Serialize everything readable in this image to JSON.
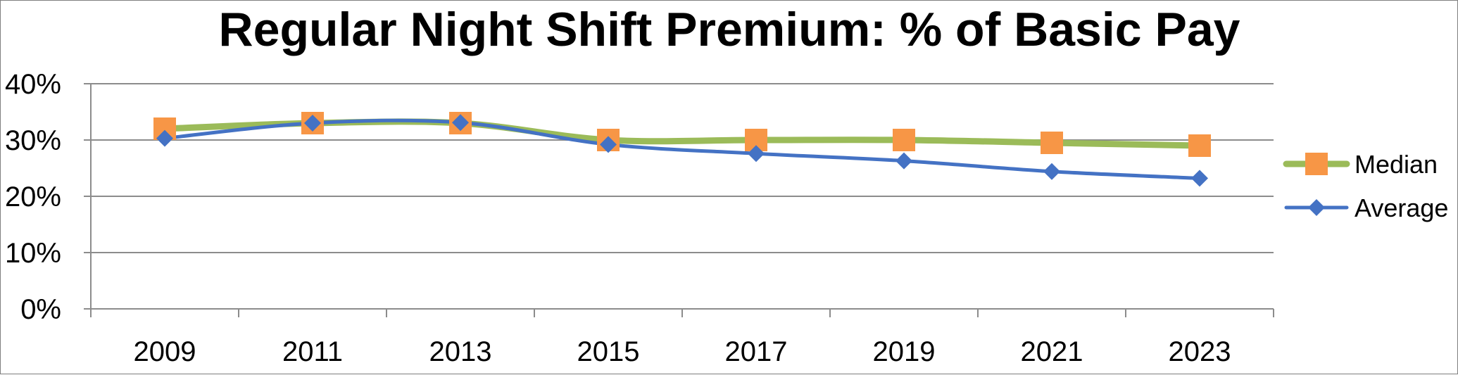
{
  "chart_data": {
    "type": "line",
    "title": "Regular Night Shift Premium: % of Basic Pay",
    "xlabel": "",
    "ylabel": "",
    "categories": [
      "2009",
      "2011",
      "2013",
      "2015",
      "2017",
      "2019",
      "2021",
      "2023"
    ],
    "ylim": [
      0,
      40
    ],
    "yticks": [
      0,
      10,
      20,
      30,
      40
    ],
    "ytick_labels": [
      "0%",
      "10%",
      "20%",
      "30%",
      "40%"
    ],
    "grid": true,
    "legend_position": "right",
    "series": [
      {
        "name": "Median",
        "values": [
          32.0,
          33.0,
          33.0,
          30.0,
          30.0,
          30.0,
          29.5,
          29.0
        ],
        "line_color": "#9bbb59",
        "marker": "square",
        "marker_color": "#f79646"
      },
      {
        "name": "Average",
        "values": [
          30.3,
          33.0,
          33.1,
          29.2,
          27.6,
          26.3,
          24.4,
          23.2
        ],
        "line_color": "#4472c4",
        "marker": "diamond",
        "marker_color": "#4472c4"
      }
    ]
  }
}
